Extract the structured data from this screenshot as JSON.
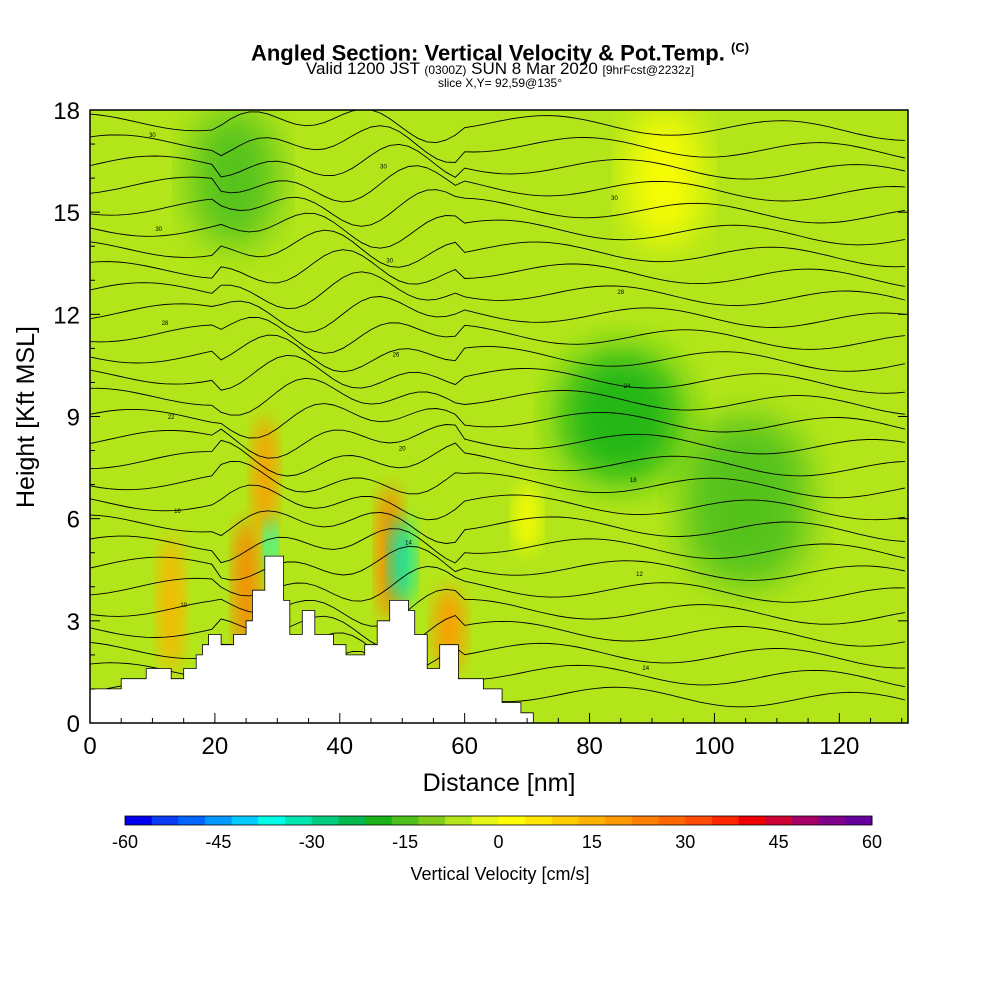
{
  "chart_data": {
    "type": "heatmap",
    "title": "Angled Section: Vertical Velocity & Pot.Temp.",
    "title_units": "(C)",
    "subtitle": {
      "main_a": "Valid 1200 JST",
      "utc": "(0300Z)",
      "main_b": "SUN 8 Mar 2020",
      "fcst": "[9hrFcst@2232z]"
    },
    "slice_text": "slice X,Y= 92,59@135°",
    "xlabel": "Distance [nm]",
    "ylabel": "Height [Kft MSL]",
    "xlim": [
      0,
      131
    ],
    "ylim": [
      0,
      18
    ],
    "xticks": [
      0,
      20,
      40,
      60,
      80,
      100,
      120
    ],
    "yticks": [
      0,
      3,
      6,
      9,
      12,
      15,
      18
    ],
    "colorbar": {
      "label": "Vertical Velocity [cm/s]",
      "ticks": [
        -60,
        -45,
        -30,
        -15,
        0,
        15,
        30,
        45,
        60
      ],
      "range": [
        -60,
        60
      ],
      "step": 5,
      "colors": [
        "#0000ee",
        "#0a3cf5",
        "#0066ff",
        "#0099ff",
        "#00ccff",
        "#00ffe6",
        "#00e6b3",
        "#00cc80",
        "#00b84d",
        "#19b319",
        "#4cbf1a",
        "#80cc1a",
        "#b3e61a",
        "#e6f51a",
        "#ffff00",
        "#ffe600",
        "#ffcc00",
        "#ffb300",
        "#ff9900",
        "#ff7f00",
        "#ff6600",
        "#ff4c00",
        "#ff2600",
        "#ee0000",
        "#cc0033",
        "#a60066",
        "#80008c",
        "#66009c"
      ]
    },
    "field_regions": [
      {
        "name": "background",
        "x": [
          0,
          131
        ],
        "y": [
          0,
          18
        ],
        "w": 2
      },
      {
        "name": "updraft-1",
        "x": [
          11,
          15
        ],
        "y": [
          1.5,
          5.5
        ],
        "w": 28
      },
      {
        "name": "updraft-2",
        "x": [
          23,
          27
        ],
        "y": [
          2,
          6
        ],
        "w": 35
      },
      {
        "name": "updraft-3",
        "x": [
          26,
          30
        ],
        "y": [
          5.5,
          9
        ],
        "w": 33
      },
      {
        "name": "updraft-4",
        "x": [
          46,
          50
        ],
        "y": [
          3,
          7
        ],
        "w": 38
      },
      {
        "name": "updraft-5",
        "x": [
          55,
          60
        ],
        "y": [
          1.5,
          4
        ],
        "w": 34
      },
      {
        "name": "updraft-6",
        "x": [
          68,
          72
        ],
        "y": [
          5,
          7
        ],
        "w": 12
      },
      {
        "name": "upper-warm",
        "x": [
          86,
          98
        ],
        "y": [
          14,
          18
        ],
        "w": 12
      },
      {
        "name": "downdraft-1",
        "x": [
          28,
          30
        ],
        "y": [
          4.5,
          6
        ],
        "w": -35
      },
      {
        "name": "downdraft-2",
        "x": [
          48,
          52
        ],
        "y": [
          3.5,
          6
        ],
        "w": -30
      },
      {
        "name": "downdraft-3",
        "x": [
          75,
          95
        ],
        "y": [
          7,
          11
        ],
        "w": -14
      },
      {
        "name": "downdraft-4",
        "x": [
          95,
          115
        ],
        "y": [
          4,
          9
        ],
        "w": -8
      },
      {
        "name": "downdraft-5",
        "x": [
          16,
          30
        ],
        "y": [
          14,
          18
        ],
        "w": -6
      }
    ],
    "terrain": [
      [
        0,
        1
      ],
      [
        5,
        1
      ],
      [
        5,
        1.3
      ],
      [
        9,
        1.3
      ],
      [
        9,
        1.6
      ],
      [
        13,
        1.6
      ],
      [
        13,
        1.3
      ],
      [
        15,
        1.3
      ],
      [
        15,
        1.6
      ],
      [
        17,
        1.6
      ],
      [
        17,
        2
      ],
      [
        18,
        2
      ],
      [
        18,
        2.3
      ],
      [
        19,
        2.3
      ],
      [
        19,
        2.6
      ],
      [
        21,
        2.6
      ],
      [
        21,
        2.3
      ],
      [
        23,
        2.3
      ],
      [
        23,
        2.6
      ],
      [
        25,
        2.6
      ],
      [
        25,
        3
      ],
      [
        26,
        3
      ],
      [
        26,
        3.9
      ],
      [
        28,
        3.9
      ],
      [
        28,
        4.9
      ],
      [
        31,
        4.9
      ],
      [
        31,
        3.6
      ],
      [
        32,
        3.6
      ],
      [
        32,
        2.6
      ],
      [
        34,
        2.6
      ],
      [
        34,
        3.3
      ],
      [
        36,
        3.3
      ],
      [
        36,
        2.6
      ],
      [
        39,
        2.6
      ],
      [
        39,
        2.3
      ],
      [
        41,
        2.3
      ],
      [
        41,
        2
      ],
      [
        44,
        2
      ],
      [
        44,
        2.3
      ],
      [
        46,
        2.3
      ],
      [
        46,
        3
      ],
      [
        48,
        3
      ],
      [
        48,
        3.6
      ],
      [
        51,
        3.6
      ],
      [
        51,
        3.3
      ],
      [
        52,
        3.3
      ],
      [
        52,
        2.6
      ],
      [
        54,
        2.6
      ],
      [
        54,
        1.6
      ],
      [
        56,
        1.6
      ],
      [
        56,
        2.3
      ],
      [
        59,
        2.3
      ],
      [
        59,
        1.3
      ],
      [
        63,
        1.3
      ],
      [
        63,
        1
      ],
      [
        66,
        1
      ],
      [
        66,
        0.6
      ],
      [
        69,
        0.6
      ],
      [
        69,
        0.3
      ],
      [
        71,
        0.3
      ],
      [
        71,
        0
      ],
      [
        131,
        0
      ]
    ],
    "contour_labels": [
      "30",
      "30",
      "30",
      "30",
      "30",
      "28",
      "28",
      "26",
      "24",
      "22",
      "20",
      "18",
      "16",
      "14",
      "12",
      "10",
      "22",
      "24"
    ]
  }
}
